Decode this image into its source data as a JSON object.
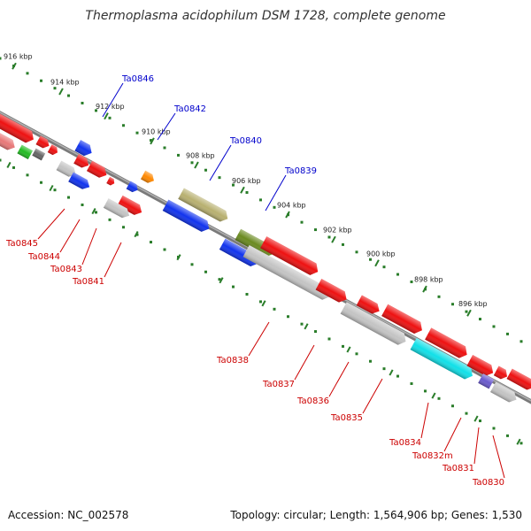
{
  "title": "Thermoplasma acidophilum DSM 1728, complete genome",
  "footer": {
    "accession": "Accession: NC_002578",
    "summary": "Topology: circular; Length: 1,564,906 bp; Genes: 1,530"
  },
  "colors": {
    "forward_label": "#0000cc",
    "reverse_label": "#cc0000",
    "tick": "#2a7d2a",
    "backbone": "#7a7a7a"
  },
  "scale_ticks": [
    {
      "label": "916 kbp"
    },
    {
      "label": "914 kbp"
    },
    {
      "label": "912 kbp"
    },
    {
      "label": "910 kbp"
    },
    {
      "label": "908 kbp"
    },
    {
      "label": "906 kbp"
    },
    {
      "label": "904 kbp"
    },
    {
      "label": "902 kbp"
    },
    {
      "label": "900 kbp"
    },
    {
      "label": "898 kbp"
    },
    {
      "label": "896 kbp"
    }
  ],
  "forward_labels": [
    {
      "label": "Ta0846"
    },
    {
      "label": "Ta0842"
    },
    {
      "label": "Ta0840"
    },
    {
      "label": "Ta0839"
    }
  ],
  "reverse_labels": [
    {
      "label": "Ta0845"
    },
    {
      "label": "Ta0844"
    },
    {
      "label": "Ta0843"
    },
    {
      "label": "Ta0841"
    },
    {
      "label": "Ta0838"
    },
    {
      "label": "Ta0837"
    },
    {
      "label": "Ta0836"
    },
    {
      "label": "Ta0835"
    },
    {
      "label": "Ta0834"
    },
    {
      "label": "Ta0832m"
    },
    {
      "label": "Ta0831"
    },
    {
      "label": "Ta0830"
    }
  ],
  "feature_colors": {
    "red": "#ee1111",
    "pink": "#e87878",
    "green": "#22bb22",
    "darkgray": "#666666",
    "blue": "#1133ee",
    "orange": "#ff8800",
    "khaki": "#b8b070",
    "olive": "#6a8a20",
    "gray": "#c4c4c4",
    "cyan": "#11e0e8",
    "purple": "#6a5acd"
  }
}
